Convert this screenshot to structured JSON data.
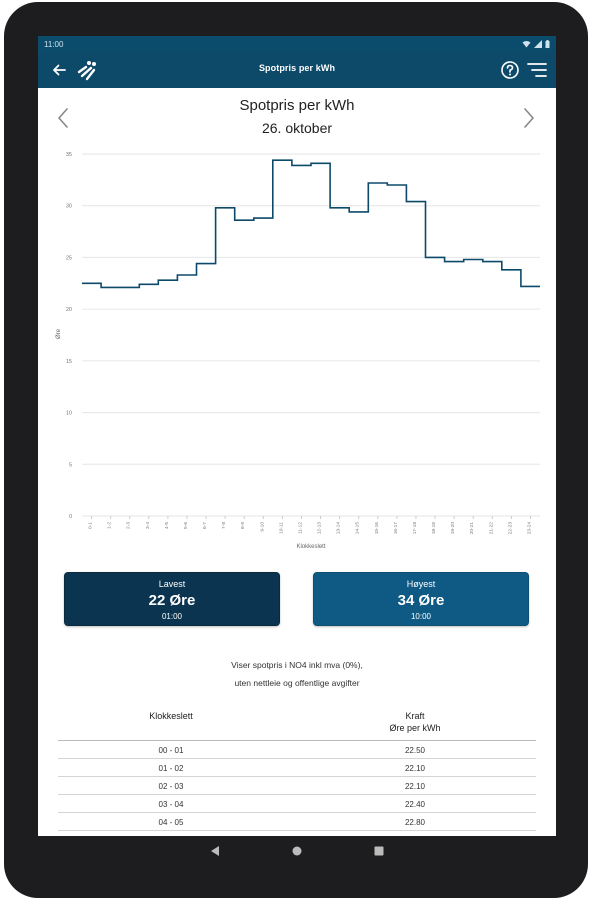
{
  "status_bar": {
    "time": "11:00"
  },
  "app_bar": {
    "title": "Spotpris per kWh",
    "icons": [
      "back-arrow-icon",
      "logo-icon",
      "help-icon",
      "menu-icon"
    ]
  },
  "header": {
    "title": "Spotpris per kWh",
    "date": "26. oktober"
  },
  "chart_data": {
    "type": "line",
    "step": true,
    "title": "Spotpris per kWh",
    "subtitle": "26. oktober",
    "xlabel": "Klokkeslett",
    "ylabel": "Øre",
    "ylim": [
      0,
      35
    ],
    "yticks": [
      0,
      5,
      10,
      15,
      20,
      25,
      30,
      35
    ],
    "categories": [
      "0-1",
      "1-2",
      "2-3",
      "3-4",
      "4-5",
      "5-6",
      "6-7",
      "7-8",
      "8-9",
      "9-10",
      "10-11",
      "11-12",
      "12-13",
      "13-14",
      "14-15",
      "15-16",
      "16-17",
      "17-18",
      "18-19",
      "19-20",
      "20-21",
      "21-22",
      "22-23",
      "23-24"
    ],
    "values": [
      22.5,
      22.1,
      22.1,
      22.4,
      22.8,
      23.3,
      24.4,
      29.8,
      28.6,
      28.8,
      34.4,
      33.9,
      34.1,
      29.8,
      29.4,
      32.2,
      32.0,
      30.4,
      25.0,
      24.6,
      24.8,
      24.6,
      23.8,
      22.2
    ],
    "grid": true,
    "line_color": "#0d4a6a"
  },
  "summary": {
    "low": {
      "label": "Lavest",
      "value": "22 Øre",
      "time": "01:00"
    },
    "high": {
      "label": "Høyest",
      "value": "34 Øre",
      "time": "10:00"
    }
  },
  "info": {
    "line1": "Viser spotpris i NO4 inkl mva (0%),",
    "line2": "uten nettleie og offentlige avgifter"
  },
  "table": {
    "col_time": "Klokkeslett",
    "col_price_1": "Kraft",
    "col_price_2": "Øre per kWh",
    "rows": [
      {
        "time": "00 - 01",
        "price": "22.50"
      },
      {
        "time": "01 - 02",
        "price": "22.10"
      },
      {
        "time": "02 - 03",
        "price": "22.10"
      },
      {
        "time": "03 - 04",
        "price": "22.40"
      },
      {
        "time": "04 - 05",
        "price": "22.80"
      }
    ]
  },
  "colors": {
    "primary": "#0d4a6a",
    "low_card": "#0b3450",
    "high_card": "#0f5a84"
  }
}
